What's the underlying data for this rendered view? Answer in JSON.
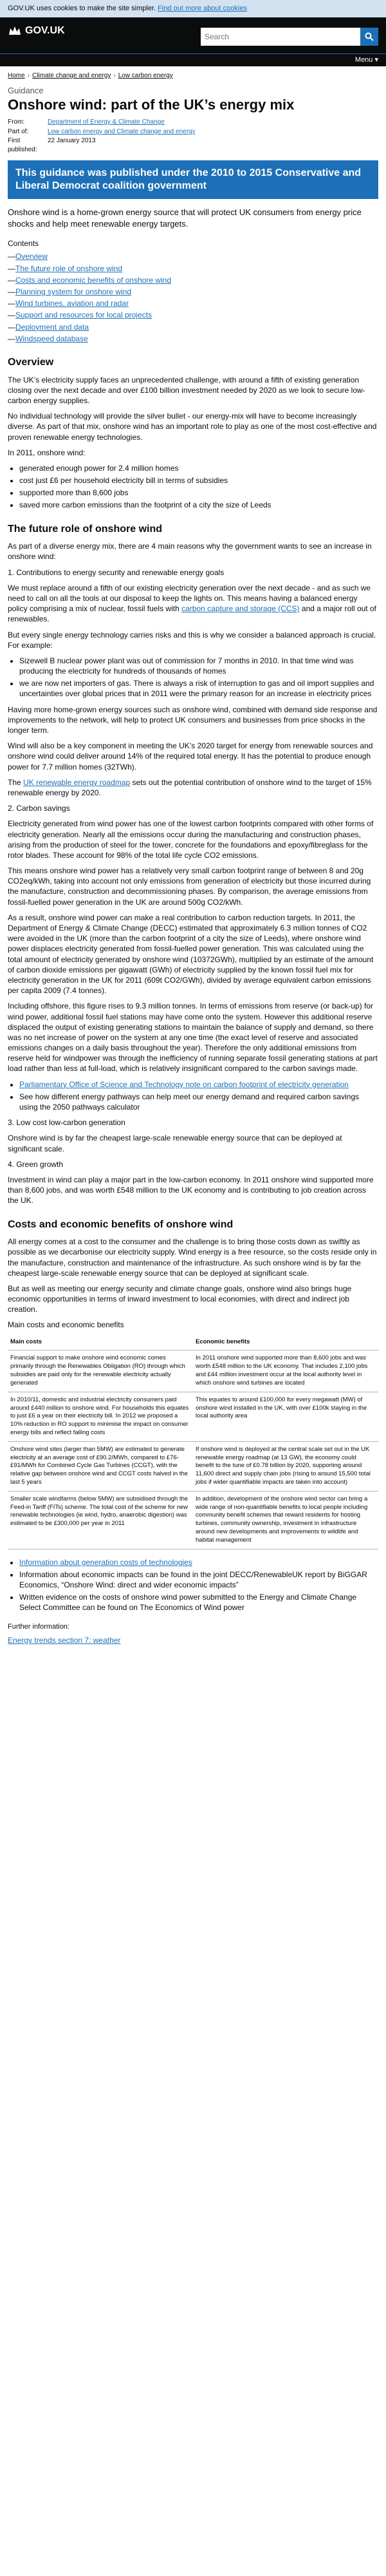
{
  "cookie_banner": {
    "text": "GOV.UK uses cookies to make the site simpler.",
    "link": "Find out more about cookies"
  },
  "header": {
    "logo": "GOV.UK",
    "search_placeholder": "Search",
    "menu": "Menu ▾"
  },
  "breadcrumb": [
    "Home",
    "Climate change and energy",
    "Low carbon energy"
  ],
  "page": {
    "caption": "Guidance",
    "title": "Onshore wind: part of the UK’s energy mix",
    "meta": {
      "from_label": "From:",
      "from_value": "Department of Energy & Climate Change",
      "part_label": "Part of:",
      "part_value": "Low carbon energy and Climate change and energy",
      "published_label": "First published:",
      "published_value": "22 January 2013"
    },
    "history_notice": "This guidance was published under the 2010 to 2015 Conservative and Liberal Democrat coalition government",
    "intro": "Onshore wind is a home-grown energy source that will protect UK consumers from energy price shocks and help meet renewable energy targets."
  },
  "contents": {
    "title": "Contents",
    "items": [
      "Overview",
      "The future role of onshore wind",
      "Costs and economic benefits of onshore wind",
      "Planning system for onshore wind",
      "Wind turbines, aviation and radar",
      "Support and resources for local projects",
      "Deployment and data",
      "Windspeed database"
    ]
  },
  "overview": {
    "heading": "Overview",
    "p1": "The UK’s electricity supply faces an unprecedented challenge, with around a fifth of existing generation closing over the next decade and over £100 billion investment needed by 2020 as we look to secure low-carbon energy supplies.",
    "p2": "No individual technology will provide the silver bullet - our energy-mix will have to become increasingly diverse. As part of that mix, onshore wind has an important role to play as one of the most cost-effective and proven renewable energy technologies.",
    "p3": "In 2011, onshore wind:",
    "bullets": [
      "generated enough power for 2.4 million homes",
      "cost just £6 per household electricity bill in terms of subsidies",
      "supported more than 8,600 jobs",
      "saved more carbon emissions than the footprint of a city the size of Leeds"
    ]
  },
  "future": {
    "heading": "The future role of onshore wind",
    "p1": "As part of a diverse energy mix, there are 4 main reasons why the government wants to see an increase in onshore wind:",
    "s1_title": "1. Contributions to energy security and renewable energy goals",
    "s1_p1_a": "We must replace around a fifth of our existing electricity generation over the next decade - and as such we need to call on all the tools at our disposal to keep the lights on. This means having a balanced energy policy comprising a mix of nuclear, fossil fuels with",
    "s1_p1_link": "carbon capture and storage (CCS)",
    "s1_p1_b": "and a major roll out of renewables.",
    "s1_p2": "But every single energy technology carries risks and this is why we consider a balanced approach is crucial. For example:",
    "s1_bullets": [
      "Sizewell B nuclear power plant was out of commission for 7 months in 2010. In that time wind was producing the electricity for hundreds of thousands of homes",
      "we are now net importers of gas. There is always a risk of interruption to gas and oil import supplies and uncertainties over global prices that in 2011 were the primary reason for an increase in electricity prices"
    ],
    "s1_p3": "Having more home-grown energy sources such as onshore wind, combined with demand side response and improvements to the network, will help to protect UK consumers and businesses from price shocks in the longer term.",
    "s1_p4": "Wind will also be a key component in meeting the UK’s 2020 target for energy from renewable sources and onshore wind could deliver around 14% of the required total energy. It has the potential to produce enough power for 7.7 million homes (32TWh).",
    "s1_p5_pre": "The",
    "s1_p5_link": "UK renewable energy roadmap",
    "s1_p5_post": "sets out the potential contribution of onshore wind to the target of 15% renewable energy by 2020.",
    "s2_title": "2. Carbon savings",
    "s2_p1": "Electricity generated from wind power has one of the lowest carbon footprints compared with other forms of electricity generation. Nearly all the emissions occur during the manufacturing and construction phases, arising from the production of steel for the tower, concrete for the foundations and epoxy/fibreglass for the rotor blades. These account for 98% of the total life cycle CO2 emissions.",
    "s2_p2": "This means onshore wind power has a relatively very small carbon footprint range of between 8 and 20g CO2eq/kWh, taking into account not only emissions from generation of electricity but those incurred during the manufacture, construction and decommissioning phases. By comparison, the average emissions from fossil-fuelled power generation in the UK are around 500g CO2/kWh.",
    "s2_p3": "As a result, onshore wind power can make a real contribution to carbon reduction targets. In 2011, the Department of Energy & Climate Change (DECC) estimated that approximately 6.3 million tonnes of CO2 were avoided in the UK (more than the carbon footprint of a city the size of Leeds), where onshore wind power displaces electricity generated from fossil-fuelled power generation. This was calculated using the total amount of electricity generated by onshore wind (10372GWh), multiplied by an estimate of the amount of carbon dioxide emissions per gigawatt (GWh) of electricity supplied by the known fossil fuel mix for electricity generation in the UK for 2011 (609t CO2/GWh), divided by average equivalent carbon emissions per capita 2009 (7.4 tonnes).",
    "s2_p4": "Including offshore, this figure rises to 9.3 million tonnes. In terms of emissions from reserve (or back-up) for wind power, additional fossil fuel stations may have come onto the system. However this additional reserve displaced the output of existing generating stations to maintain the balance of supply and demand, so there was no net increase of power on the system at any one time (the exact level of reserve and associated emissions changes on a daily basis throughout the year). Therefore the only additional emissions from reserve held for windpower was through the inefficiency of running separate fossil generating stations at part load rather than less at full-load, which is relatively insignificant compared to the carbon savings made.",
    "s2_bullets": [
      "Parliamentary Office of Science and Technology note on carbon footprint of electricity generation",
      "See how different energy pathways can help meet our energy demand and required carbon savings using the 2050 pathways calculator"
    ],
    "s3_title": "3. Low cost low-carbon generation",
    "s3_p1": "Onshore wind is by far the cheapest large-scale renewable energy source that can be deployed at significant scale.",
    "s4_title": "4. Green growth",
    "s4_p1": "Investment in wind can play a major part in the low-carbon economy. In 2011 onshore wind supported more than 8,600 jobs, and was worth £548 million to the UK economy and is contributing to job creation across the UK."
  },
  "costs": {
    "heading": "Costs and economic benefits of onshore wind",
    "p1": "All energy comes at a cost to the consumer and the challenge is to bring those costs down as swiftly as possible as we decarbonise our electricity supply. Wind energy is a free resource, so the costs reside only in the manufacture, construction and maintenance of the infrastructure. As such onshore wind is by far the cheapest large-scale renewable energy source that can be deployed at significant scale.",
    "p2": "But as well as meeting our energy security and climate change goals, onshore wind also brings huge economic opportunities in terms of inward investment to local economies, with direct and indirect job creation.",
    "table_title": "Main costs and economic benefits",
    "table_headers": [
      "Main costs",
      "Economic benefits"
    ],
    "table_rows": [
      [
        "Financial support to make onshore wind economic comes primarily through the Renewables Obligation (RO) through which subsidies are paid only for the renewable electricity actually generated",
        "In 2011 onshore wind supported more than 8,600 jobs and was worth £548 million to the UK economy. That includes 2,100 jobs and £44 million investment occur at the local authority level in which onshore wind turbines are located"
      ],
      [
        "In 2010/11, domestic and industrial electricity consumers paid around £440 million to onshore wind. For households this equates to just £6 a year on their electricity bill. In 2012 we proposed a 10% reduction in RO support to minimise the impact on consumer energy bills and reflect falling costs",
        "This equates to around £100,000 for every megawatt (MW) of onshore wind installed in the UK, with over £100k staying in the local authority area"
      ],
      [
        "Onshore wind sites (larger than 5MW) are estimated to generate electricity at an average cost of £90.2/MWh, compared to £76-£91/MWh for Combined Cycle Gas Turbines (CCGT), with the relative gap between onshore wind and CCGT costs halved in the last 5 years",
        "If onshore wind is deployed at the central scale set out in the UK renewable energy roadmap (at 13 GW), the economy could benefit to the tune of £0.78 billion by 2020, supporting around 11,600 direct and supply chain jobs (rising to around 15,500 total jobs if wider quantifiable impacts are taken into account)"
      ],
      [
        "Smaller scale windfarms (below 5MW) are subsidised through the Feed-in Tariff (FITs) scheme. The total cost of the scheme for new renewable technologies (ie wind, hydro, anaerobic digestion) was estimated to be £300,000 per year in 2011",
        "In addition, development of the onshore wind sector can bring a wide range of non-quantifiable benefits to local people including community benefit schemes that reward residents for hosting turbines, community ownership, investment in infrastructure around new developments and improvements to wildlife and habitat management"
      ]
    ],
    "bullets": [
      "Information about generation costs of technologies",
      "Information about economic impacts can be found in the joint DECC/RenewableUK report by BiGGAR Economics, “Onshore Wind: direct and wider economic impacts”",
      "Written evidence on the costs of onshore wind power submitted to the Energy and Climate Change Select Committee can be found on The Economics of Wind power"
    ],
    "further_title": "Further information:",
    "further_link": "Energy trends section 7: weather"
  }
}
